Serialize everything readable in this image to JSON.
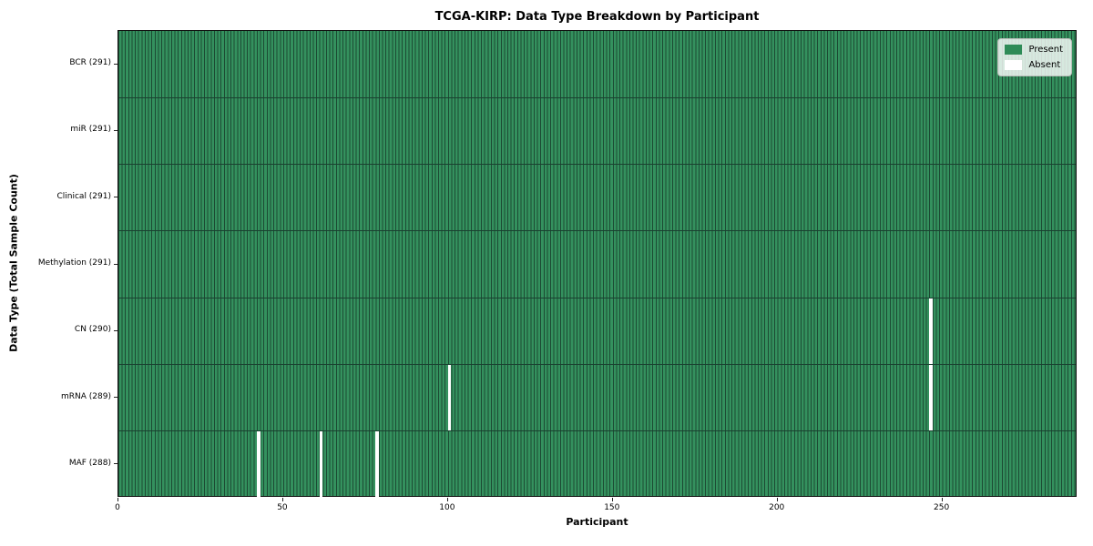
{
  "chart_data": {
    "type": "heatmap",
    "title": "TCGA-KIRP: Data Type Breakdown by Participant",
    "xlabel": "Participant",
    "ylabel": "Data Type (Total Sample Count)",
    "x_range": [
      0,
      291
    ],
    "x_ticks": [
      0,
      50,
      100,
      150,
      200,
      250
    ],
    "total_participants": 291,
    "grid": false,
    "legend_position": "upper right",
    "rows": [
      {
        "data_type": "BCR",
        "label": "BCR (291)",
        "present_count": 291,
        "absent_participants": []
      },
      {
        "data_type": "miR",
        "label": "miR (291)",
        "present_count": 291,
        "absent_participants": []
      },
      {
        "data_type": "Clinical",
        "label": "Clinical (291)",
        "present_count": 291,
        "absent_participants": []
      },
      {
        "data_type": "Methylation",
        "label": "Methylation (291)",
        "present_count": 291,
        "absent_participants": []
      },
      {
        "data_type": "CN",
        "label": "CN (290)",
        "present_count": 290,
        "absent_participants": [
          246
        ]
      },
      {
        "data_type": "mRNA",
        "label": "mRNA (289)",
        "present_count": 289,
        "absent_participants": [
          100,
          246
        ]
      },
      {
        "data_type": "MAF",
        "label": "MAF (288)",
        "present_count": 288,
        "absent_participants": [
          42,
          61,
          78
        ]
      }
    ],
    "legend": [
      {
        "label": "Present",
        "color": "#2e8b57"
      },
      {
        "label": "Absent",
        "color": "#ffffff"
      }
    ],
    "colors": {
      "bar_fill": "#34915e",
      "bar_edge": "#1c4a33",
      "row_separator": "#1a4030",
      "absent": "#ffffff"
    }
  }
}
